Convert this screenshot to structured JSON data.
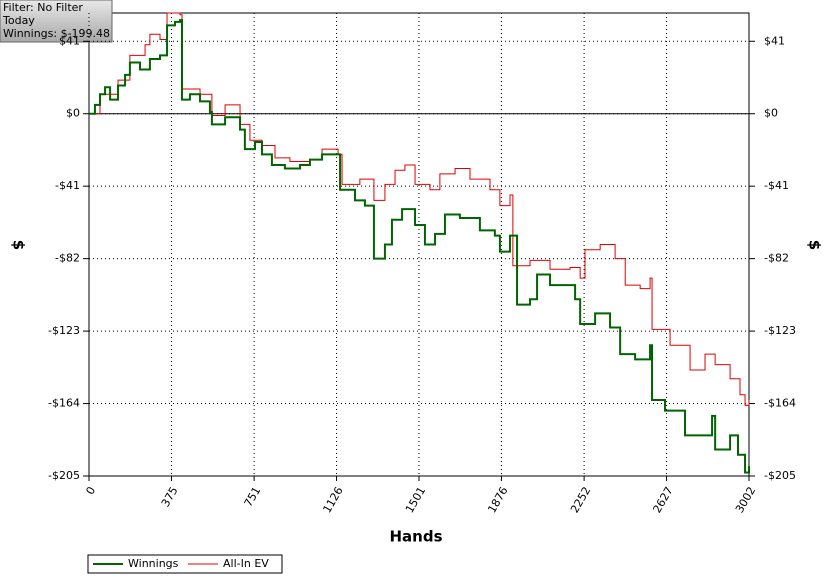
{
  "chart_data": {
    "type": "line",
    "info": [
      "Filter: No Filter",
      "Today",
      "Winnings: $-199.48"
    ],
    "xlabel": "Hands",
    "ylabel": "$",
    "y2label": "$",
    "xlim": [
      0,
      3002
    ],
    "xticks": [
      0,
      375,
      751,
      1126,
      1501,
      1876,
      2252,
      2627,
      3002
    ],
    "ylim": [
      -205,
      57
    ],
    "yticks": [
      {
        "value": 41,
        "label": "$41"
      },
      {
        "value": 0,
        "label": "$0"
      },
      {
        "value": -41,
        "label": "-$41"
      },
      {
        "value": -82,
        "label": "-$82"
      },
      {
        "value": -123,
        "label": "-$123"
      },
      {
        "value": -164,
        "label": "-$164"
      },
      {
        "value": -205,
        "label": "-$205"
      }
    ],
    "y2lim": [
      -205,
      57
    ],
    "y2ticks": [
      {
        "value": 41,
        "label": "$41"
      },
      {
        "value": 0,
        "label": "$0"
      },
      {
        "value": -41,
        "label": "-$41"
      },
      {
        "value": -82,
        "label": "-$82"
      },
      {
        "value": -123,
        "label": "-$123"
      },
      {
        "value": -164,
        "label": "-$164"
      },
      {
        "value": -205,
        "label": "-$205"
      }
    ],
    "grid": true,
    "series": [
      {
        "name": "Winnings",
        "color": "#006400",
        "x": [
          0,
          27,
          50,
          73,
          96,
          132,
          164,
          186,
          232,
          277,
          323,
          355,
          391,
          414,
          423,
          459,
          505,
          550,
          559,
          619,
          687,
          709,
          755,
          787,
          832,
          891,
          960,
          1005,
          1060,
          1096,
          1142,
          1210,
          1255,
          1296,
          1346,
          1378,
          1424,
          1483,
          1528,
          1574,
          1619,
          1687,
          1778,
          1846,
          1869,
          1915,
          1947,
          2006,
          2038,
          2097,
          2165,
          2211,
          2234,
          2302,
          2370,
          2416,
          2484,
          2552,
          2561,
          2620,
          2711,
          2779,
          2834,
          2848,
          2916,
          2952,
          2984,
          3002
        ],
        "values": [
          0,
          5,
          11,
          15,
          8,
          16,
          22,
          29,
          25,
          31,
          33,
          50,
          52,
          53,
          8,
          11,
          7,
          1,
          -6,
          -2,
          -9,
          -20,
          -16,
          -23,
          -29,
          -31,
          -29,
          -26,
          -23,
          -23,
          -43,
          -49,
          -52,
          -82,
          -74,
          -60,
          -54,
          -63,
          -74,
          -68,
          -57,
          -59,
          -66,
          -69,
          -78,
          -69,
          -108,
          -105,
          -91,
          -97,
          -97,
          -105,
          -119,
          -113,
          -121,
          -136,
          -139,
          -131,
          -162,
          -168,
          -182,
          -182,
          -171,
          -190,
          -182,
          -193,
          -203,
          -199.48
        ]
      },
      {
        "name": "All-In EV",
        "color": "#e00000",
        "x": [
          0,
          50,
          132,
          186,
          255,
          277,
          323,
          355,
          414,
          423,
          505,
          559,
          619,
          687,
          732,
          787,
          846,
          914,
          1005,
          1060,
          1133,
          1151,
          1232,
          1296,
          1346,
          1392,
          1437,
          1483,
          1551,
          1596,
          1665,
          1733,
          1824,
          1869,
          1915,
          1928,
          2006,
          2097,
          2188,
          2234,
          2256,
          2325,
          2393,
          2439,
          2507,
          2552,
          2561,
          2643,
          2734,
          2802,
          2848,
          2916,
          2961,
          2984,
          3002
        ],
        "values": [
          0,
          11,
          19,
          33,
          39,
          45,
          42,
          57,
          56,
          14,
          11,
          -1,
          5,
          -6,
          -15,
          -18,
          -25,
          -27,
          -26,
          -20,
          -23,
          -40,
          -37,
          -49,
          -40,
          -32,
          -29,
          -40,
          -43,
          -34,
          -31,
          -37,
          -43,
          -52,
          -46,
          -86,
          -83,
          -88,
          -87,
          -93,
          -77,
          -74,
          -82,
          -97,
          -99,
          -93,
          -122,
          -131,
          -145,
          -136,
          -142,
          -150,
          -159,
          -165,
          -162
        ]
      }
    ]
  }
}
